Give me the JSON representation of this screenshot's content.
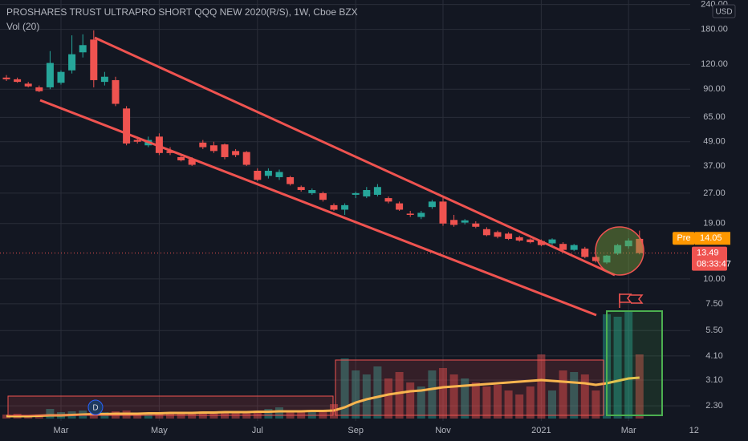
{
  "chart_data": {
    "type": "candlestick",
    "title": "PROSHARES TRUST ULTRAPRO SHORT QQQ NEW 2020(R/S), 1W, Cboe BZX",
    "indicator": "Vol (20)",
    "currency": "USD",
    "log_scale": true,
    "grid": true,
    "up_color": "#26a69a",
    "down_color": "#ef5350",
    "ma_color": "#f9c74f",
    "categories": [
      null,
      null,
      null,
      null,
      null,
      "Mar",
      null,
      null,
      null,
      null,
      null,
      null,
      null,
      null,
      "May",
      null,
      null,
      null,
      null,
      null,
      null,
      null,
      null,
      "Jul",
      null,
      null,
      null,
      null,
      null,
      null,
      null,
      null,
      "Sep",
      null,
      null,
      null,
      null,
      null,
      null,
      null,
      "Nov",
      null,
      null,
      null,
      null,
      null,
      null,
      null,
      null,
      "2021",
      null,
      null,
      null,
      null,
      null,
      null,
      null,
      "Mar",
      null,
      null,
      null,
      null,
      null,
      "12"
    ],
    "open": [
      103,
      101,
      96,
      92,
      92,
      97,
      112,
      138,
      160,
      98,
      100,
      72,
      50,
      47,
      52,
      44,
      41,
      40,
      48.5,
      47,
      47.5,
      44,
      43.5,
      35,
      33,
      32.5,
      32.5,
      29,
      27,
      27,
      23.5,
      22.3,
      26.5,
      26,
      26.5,
      25.5,
      24,
      21.3,
      20.5,
      23,
      24.5,
      19.8,
      19.2,
      19,
      17.8,
      17.2,
      16.9,
      16.2,
      15.8,
      15.5,
      15.1,
      15,
      14,
      14.2,
      12.9,
      12.1,
      13.4,
      14.6,
      15.9,
      null,
      null,
      null,
      null,
      null
    ],
    "high": [
      106,
      103,
      98,
      94,
      140,
      112,
      168,
      170,
      178,
      110,
      104,
      74,
      52,
      52,
      54,
      46,
      42,
      41,
      50,
      49,
      48,
      45,
      44,
      36,
      36,
      35.5,
      33,
      29.5,
      28.5,
      27.5,
      24,
      24,
      27.5,
      29,
      30,
      26,
      24.5,
      22,
      22,
      25,
      26,
      21,
      20,
      19.5,
      18.2,
      17.5,
      17.2,
      16.5,
      16,
      15.8,
      16,
      15.3,
      15,
      14.5,
      13.2,
      13.2,
      15,
      16,
      17.5,
      null,
      null,
      null,
      null,
      null
    ],
    "low": [
      99,
      97,
      92,
      87,
      90,
      95,
      108,
      130,
      92,
      94,
      74,
      47,
      48,
      46,
      42,
      42,
      39,
      37,
      45,
      43,
      40,
      41,
      37,
      31,
      32,
      31.5,
      29.5,
      27.5,
      26.5,
      24.5,
      22,
      21,
      25.5,
      25.5,
      26,
      24,
      22,
      20.5,
      20,
      22.5,
      18.5,
      18.3,
      18.8,
      18,
      16.4,
      16,
      15.7,
      15.4,
      15.1,
      14.6,
      14.8,
      13.8,
      13.8,
      12.7,
      12.1,
      11.9,
      13.2,
      14.2,
      13.3,
      null,
      null,
      null,
      null,
      null
    ],
    "close": [
      101,
      98,
      93,
      88,
      122,
      110,
      135,
      150,
      100,
      104,
      76,
      48,
      49,
      50,
      43,
      43,
      39.5,
      37.5,
      46,
      44,
      41,
      42,
      37.5,
      31.5,
      35,
      34.5,
      30,
      28,
      28,
      25,
      22.3,
      23.5,
      27,
      28,
      29,
      24.5,
      22.3,
      21,
      21.5,
      24.5,
      19,
      18.7,
      19.7,
      18.3,
      16.6,
      16.3,
      15.9,
      15.6,
      15.3,
      14.8,
      15.8,
      14,
      14.8,
      12.9,
      12.3,
      13.1,
      14.8,
      15.6,
      13.49,
      null,
      null,
      null,
      null,
      null
    ],
    "volume": [
      5,
      6,
      4,
      5,
      12,
      8,
      9,
      10,
      14,
      8,
      9,
      10,
      7,
      6,
      8,
      6,
      7,
      7,
      9,
      8,
      7,
      8,
      9,
      10,
      12,
      14,
      10,
      9,
      8,
      9,
      18,
      75,
      60,
      55,
      65,
      50,
      58,
      45,
      40,
      60,
      63,
      55,
      50,
      45,
      40,
      42,
      35,
      30,
      40,
      80,
      35,
      60,
      58,
      55,
      35,
      130,
      127,
      135,
      80,
      null,
      null,
      null,
      null,
      null
    ],
    "volume_ma": [
      3,
      3,
      3,
      3.5,
      4,
      4,
      4.5,
      5,
      5.5,
      5.5,
      6,
      6,
      6,
      6.5,
      6.5,
      7,
      7,
      7,
      7.5,
      7.5,
      8,
      8,
      8,
      8.5,
      8.5,
      9,
      9,
      9,
      9.5,
      9.5,
      10,
      14,
      20,
      24,
      27,
      30,
      32,
      34,
      35,
      37,
      39,
      40,
      41,
      42,
      43,
      44,
      45,
      46,
      47,
      48,
      47,
      46,
      45,
      44,
      42,
      44,
      47,
      50,
      51,
      null,
      null,
      null,
      null,
      null
    ],
    "ylim": [
      1.93,
      253
    ],
    "yticks": [
      {
        "value": 2.3,
        "label": "2.30"
      },
      {
        "value": 3.1,
        "label": "3.10"
      },
      {
        "value": 4.1,
        "label": "4.10"
      },
      {
        "value": 5.5,
        "label": "5.50"
      },
      {
        "value": 7.5,
        "label": "7.50"
      },
      {
        "value": 10,
        "label": "10.00"
      },
      {
        "value": 19,
        "label": "19.00"
      },
      {
        "value": 27,
        "label": "27.00"
      },
      {
        "value": 37,
        "label": "37.00"
      },
      {
        "value": 49,
        "label": "49.00"
      },
      {
        "value": 65,
        "label": "65.00"
      },
      {
        "value": 90,
        "label": "90.00"
      },
      {
        "value": 120,
        "label": "120.00"
      },
      {
        "value": 180,
        "label": "180.00"
      },
      {
        "value": 240,
        "label": "240.00"
      }
    ],
    "last_price": 13.49,
    "countdown": "08:33:47",
    "premarket_label": "Pre",
    "premarket_price": 14.05,
    "badge": "D"
  }
}
